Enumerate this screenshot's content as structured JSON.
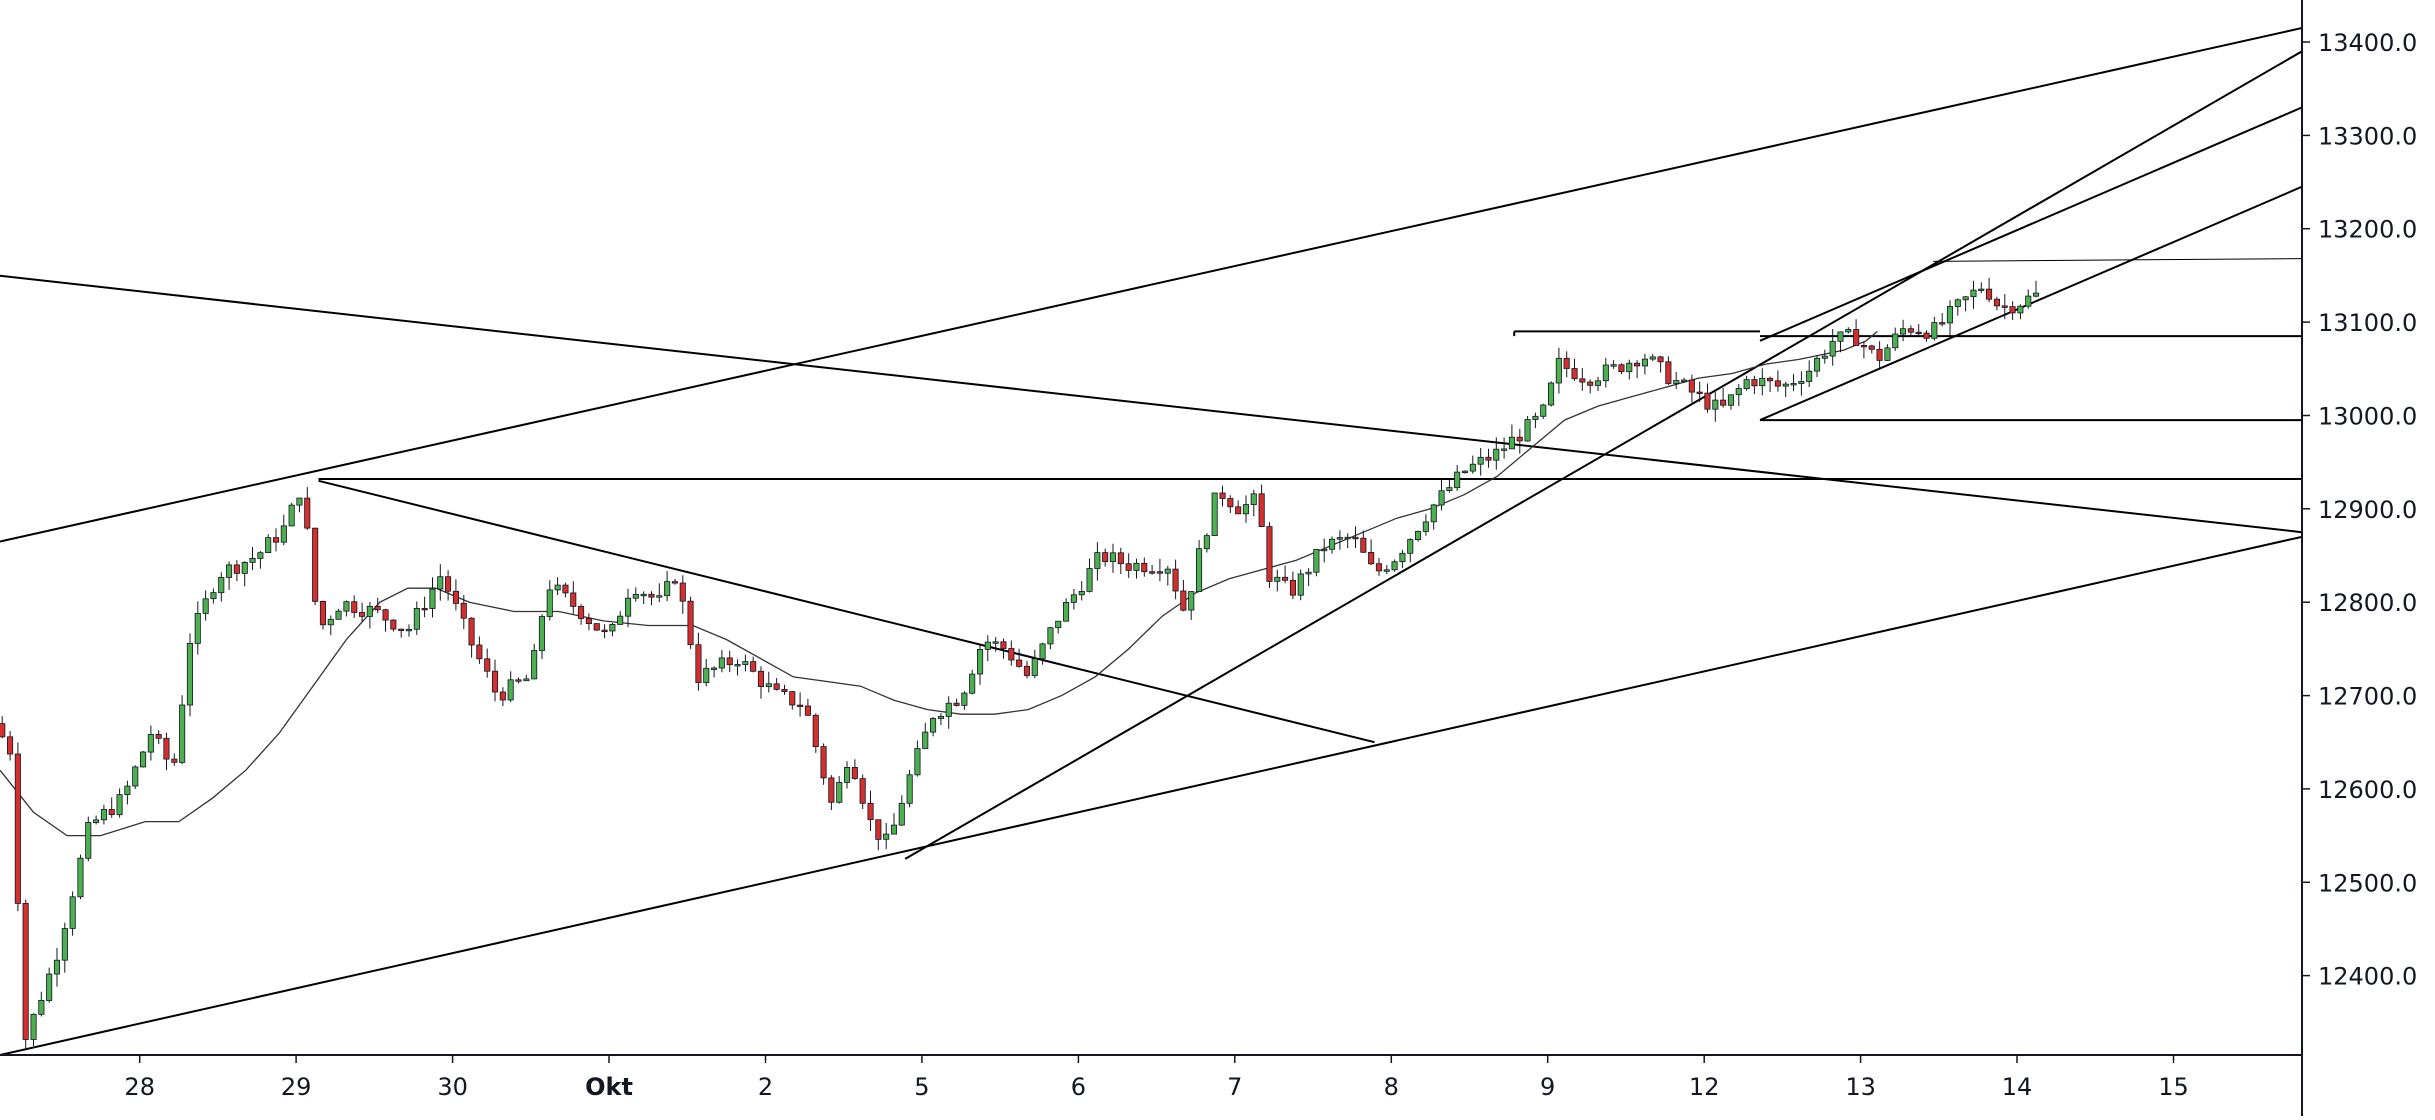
{
  "chart_data": {
    "type": "candlestick",
    "colors": {
      "up": "#4caf50",
      "down": "#d32f2f",
      "wick": "#131722",
      "trendline": "#000000",
      "moving_average": "#333333",
      "axis": "#131722",
      "background": "#ffffff"
    },
    "grid": false,
    "y_axis": {
      "position": "right",
      "range": [
        12315,
        13445
      ],
      "ticks": [
        "12400.0",
        "12500.0",
        "12600.0",
        "12700.0",
        "12800.0",
        "12900.0",
        "13000.0",
        "13100.0",
        "13200.0",
        "13300.0",
        "13400.0"
      ]
    },
    "x_axis": {
      "range": [
        -0.5,
        20.1
      ],
      "ticks": [
        {
          "label": "28",
          "x": 0.75
        },
        {
          "label": "29",
          "x": 2.15
        },
        {
          "label": "30",
          "x": 3.55
        },
        {
          "label": "Okt",
          "x": 4.95,
          "bold": true
        },
        {
          "label": "2",
          "x": 6.35
        },
        {
          "label": "5",
          "x": 7.75
        },
        {
          "label": "6",
          "x": 9.15
        },
        {
          "label": "7",
          "x": 10.55
        },
        {
          "label": "8",
          "x": 11.95
        },
        {
          "label": "9",
          "x": 13.35
        },
        {
          "label": "12",
          "x": 14.75
        },
        {
          "label": "13",
          "x": 16.15
        },
        {
          "label": "14",
          "x": 17.55
        },
        {
          "label": "15",
          "x": 18.95
        }
      ]
    },
    "anchors": [
      {
        "x": -0.55,
        "y": 12670
      },
      {
        "x": -0.4,
        "y": 12640
      },
      {
        "x": -0.28,
        "y": 12330
      },
      {
        "x": 0.0,
        "y": 12420
      },
      {
        "x": 0.3,
        "y": 12560
      },
      {
        "x": 0.6,
        "y": 12590
      },
      {
        "x": 0.85,
        "y": 12660
      },
      {
        "x": 1.05,
        "y": 12620
      },
      {
        "x": 1.2,
        "y": 12760
      },
      {
        "x": 1.45,
        "y": 12830
      },
      {
        "x": 1.8,
        "y": 12850
      },
      {
        "x": 2.05,
        "y": 12880
      },
      {
        "x": 2.2,
        "y": 12925
      },
      {
        "x": 2.35,
        "y": 12770
      },
      {
        "x": 2.55,
        "y": 12800
      },
      {
        "x": 2.85,
        "y": 12790
      },
      {
        "x": 3.15,
        "y": 12770
      },
      {
        "x": 3.45,
        "y": 12830
      },
      {
        "x": 3.7,
        "y": 12760
      },
      {
        "x": 3.95,
        "y": 12700
      },
      {
        "x": 4.25,
        "y": 12720
      },
      {
        "x": 4.4,
        "y": 12820
      },
      {
        "x": 4.7,
        "y": 12790
      },
      {
        "x": 4.95,
        "y": 12760
      },
      {
        "x": 5.15,
        "y": 12820
      },
      {
        "x": 5.4,
        "y": 12800
      },
      {
        "x": 5.55,
        "y": 12830
      },
      {
        "x": 5.75,
        "y": 12720
      },
      {
        "x": 6.1,
        "y": 12740
      },
      {
        "x": 6.45,
        "y": 12700
      },
      {
        "x": 6.7,
        "y": 12690
      },
      {
        "x": 6.95,
        "y": 12580
      },
      {
        "x": 7.1,
        "y": 12640
      },
      {
        "x": 7.3,
        "y": 12560
      },
      {
        "x": 7.45,
        "y": 12540
      },
      {
        "x": 7.6,
        "y": 12600
      },
      {
        "x": 7.85,
        "y": 12680
      },
      {
        "x": 8.1,
        "y": 12700
      },
      {
        "x": 8.3,
        "y": 12760
      },
      {
        "x": 8.5,
        "y": 12750
      },
      {
        "x": 8.7,
        "y": 12720
      },
      {
        "x": 8.95,
        "y": 12780
      },
      {
        "x": 9.35,
        "y": 12850
      },
      {
        "x": 9.6,
        "y": 12840
      },
      {
        "x": 9.95,
        "y": 12840
      },
      {
        "x": 10.1,
        "y": 12790
      },
      {
        "x": 10.25,
        "y": 12860
      },
      {
        "x": 10.4,
        "y": 12920
      },
      {
        "x": 10.6,
        "y": 12900
      },
      {
        "x": 10.75,
        "y": 12910
      },
      {
        "x": 10.85,
        "y": 12830
      },
      {
        "x": 11.05,
        "y": 12810
      },
      {
        "x": 11.35,
        "y": 12860
      },
      {
        "x": 11.6,
        "y": 12870
      },
      {
        "x": 11.8,
        "y": 12830
      },
      {
        "x": 12.0,
        "y": 12850
      },
      {
        "x": 12.3,
        "y": 12900
      },
      {
        "x": 12.6,
        "y": 12940
      },
      {
        "x": 12.9,
        "y": 12960
      },
      {
        "x": 13.1,
        "y": 12980
      },
      {
        "x": 13.3,
        "y": 13000
      },
      {
        "x": 13.45,
        "y": 13055
      },
      {
        "x": 13.7,
        "y": 13040
      },
      {
        "x": 13.95,
        "y": 13050
      },
      {
        "x": 14.2,
        "y": 13065
      },
      {
        "x": 14.45,
        "y": 13040
      },
      {
        "x": 14.7,
        "y": 13020
      },
      {
        "x": 14.9,
        "y": 13005
      },
      {
        "x": 15.15,
        "y": 13040
      },
      {
        "x": 15.45,
        "y": 13030
      },
      {
        "x": 15.7,
        "y": 13050
      },
      {
        "x": 15.9,
        "y": 13080
      },
      {
        "x": 16.1,
        "y": 13085
      },
      {
        "x": 16.3,
        "y": 13060
      },
      {
        "x": 16.55,
        "y": 13095
      },
      {
        "x": 16.8,
        "y": 13090
      },
      {
        "x": 17.05,
        "y": 13120
      },
      {
        "x": 17.25,
        "y": 13140
      },
      {
        "x": 17.4,
        "y": 13115
      },
      {
        "x": 17.55,
        "y": 13120
      },
      {
        "x": 17.75,
        "y": 13130
      }
    ],
    "moving_average": [
      [
        -0.5,
        12620
      ],
      [
        -0.2,
        12575
      ],
      [
        0.1,
        12550
      ],
      [
        0.4,
        12550
      ],
      [
        0.8,
        12565
      ],
      [
        1.1,
        12565
      ],
      [
        1.4,
        12590
      ],
      [
        1.7,
        12620
      ],
      [
        2.0,
        12660
      ],
      [
        2.3,
        12710
      ],
      [
        2.6,
        12760
      ],
      [
        2.9,
        12800
      ],
      [
        3.15,
        12815
      ],
      [
        3.4,
        12815
      ],
      [
        3.7,
        12800
      ],
      [
        4.1,
        12790
      ],
      [
        4.5,
        12790
      ],
      [
        4.9,
        12780
      ],
      [
        5.3,
        12775
      ],
      [
        5.7,
        12775
      ],
      [
        6.0,
        12760
      ],
      [
        6.3,
        12740
      ],
      [
        6.6,
        12720
      ],
      [
        6.9,
        12715
      ],
      [
        7.2,
        12710
      ],
      [
        7.5,
        12695
      ],
      [
        7.8,
        12685
      ],
      [
        8.1,
        12680
      ],
      [
        8.4,
        12680
      ],
      [
        8.7,
        12685
      ],
      [
        9.0,
        12700
      ],
      [
        9.3,
        12720
      ],
      [
        9.6,
        12750
      ],
      [
        9.9,
        12785
      ],
      [
        10.2,
        12810
      ],
      [
        10.5,
        12825
      ],
      [
        10.8,
        12835
      ],
      [
        11.1,
        12845
      ],
      [
        11.4,
        12860
      ],
      [
        11.7,
        12875
      ],
      [
        12.0,
        12890
      ],
      [
        12.3,
        12900
      ],
      [
        12.6,
        12915
      ],
      [
        12.9,
        12935
      ],
      [
        13.2,
        12965
      ],
      [
        13.5,
        12995
      ],
      [
        13.8,
        13010
      ],
      [
        14.1,
        13020
      ],
      [
        14.4,
        13030
      ],
      [
        14.7,
        13040
      ],
      [
        15.0,
        13045
      ],
      [
        15.3,
        13055
      ],
      [
        15.6,
        13060
      ],
      [
        15.8,
        13065
      ],
      [
        16.0,
        13070
      ],
      [
        16.2,
        13080
      ],
      [
        16.3,
        13090
      ]
    ],
    "trendlines": [
      {
        "x1": -0.5,
        "y1": 12315,
        "x2": 20.1,
        "y2": 12870
      },
      {
        "x1": -0.5,
        "y1": 12865,
        "x2": 20.1,
        "y2": 13415
      },
      {
        "x1": -0.9,
        "y1": 13155,
        "x2": 20.1,
        "y2": 12875
      },
      {
        "x1": 2.35,
        "y1": 12930,
        "x2": 11.8,
        "y2": 12650
      },
      {
        "x1": 7.6,
        "y1": 12525,
        "x2": 20.1,
        "y2": 13390
      },
      {
        "x1": 15.25,
        "y1": 13080,
        "x2": 20.1,
        "y2": 13330
      },
      {
        "x1": 15.25,
        "y1": 12995,
        "x2": 20.1,
        "y2": 13245
      },
      {
        "x1": 2.35,
        "y1": 12932,
        "x2": 20.1,
        "y2": 12932
      },
      {
        "x1": 13.05,
        "y1": 13090,
        "x2": 13.05,
        "y2": 13085
      },
      {
        "x1": 13.05,
        "y1": 13090,
        "x2": 15.25,
        "y2": 13090
      },
      {
        "x1": 15.25,
        "y1": 13085,
        "x2": 20.1,
        "y2": 13085
      },
      {
        "x1": 15.25,
        "y1": 12995,
        "x2": 20.1,
        "y2": 12995
      },
      {
        "x1": 16.8,
        "y1": 13165,
        "x2": 20.1,
        "y2": 13168
      }
    ]
  }
}
